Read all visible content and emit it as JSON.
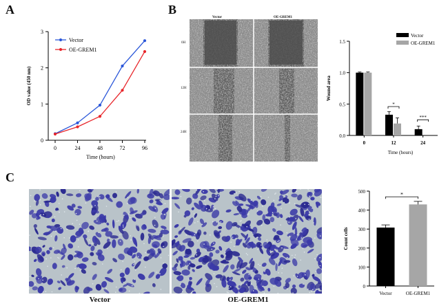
{
  "panels": {
    "a": "A",
    "b": "B",
    "c": "C"
  },
  "colors": {
    "vector_line": "#2b57d9",
    "oe_line": "#e8262b",
    "bar_vector": "#000000",
    "bar_oe": "#a6a6a6",
    "stain": "#3b3aa8"
  },
  "panelB_images": {
    "col_labels": [
      "Vector",
      "OE-GREM1"
    ],
    "row_labels": [
      "0H",
      "12H",
      "24H"
    ]
  },
  "panelC_images": {
    "labels": [
      "Vector",
      "OE-GREM1"
    ]
  },
  "chart_data": [
    {
      "id": "A",
      "type": "line",
      "x": [
        0,
        24,
        48,
        72,
        96
      ],
      "series": [
        {
          "name": "Vector",
          "values": [
            0.18,
            0.48,
            0.97,
            2.05,
            2.75
          ]
        },
        {
          "name": "OE-GREM1",
          "values": [
            0.17,
            0.37,
            0.66,
            1.38,
            2.45
          ]
        }
      ],
      "xlabel": "Time (hours)",
      "ylabel": "OD value (450 nm)",
      "xticks": [
        "0",
        "24",
        "48",
        "72",
        "96"
      ],
      "yticks": [
        "0",
        "1",
        "2",
        "3"
      ],
      "ylim": [
        0,
        3
      ],
      "legend": "top-left",
      "grid": false
    },
    {
      "id": "B",
      "type": "bar",
      "categories": [
        "0",
        "12",
        "24"
      ],
      "series": [
        {
          "name": "Vector",
          "values": [
            1.0,
            0.33,
            0.1
          ],
          "errors": [
            0.01,
            0.05,
            0.05
          ]
        },
        {
          "name": "OE-GREM1",
          "values": [
            1.0,
            0.19,
            0.0
          ],
          "errors": [
            0.01,
            0.09,
            0.0
          ]
        }
      ],
      "xlabel": "Time (hours)",
      "ylabel": "Wound area",
      "yticks": [
        "0.0",
        "0.5",
        "1.0",
        "1.5"
      ],
      "ylim": [
        0,
        1.5
      ],
      "significance": [
        "*",
        "***"
      ],
      "legend": "top-right",
      "grid": false
    },
    {
      "id": "C",
      "type": "bar",
      "categories": [
        "Vector",
        "OE-GREM1"
      ],
      "series": [
        {
          "name": "",
          "values": [
            308,
            430
          ],
          "errors": [
            14,
            16
          ]
        }
      ],
      "ylabel": "Count cells",
      "yticks": [
        "0",
        "100",
        "200",
        "300",
        "400",
        "500"
      ],
      "ylim": [
        0,
        500
      ],
      "significance": [
        "*"
      ],
      "grid": false
    }
  ]
}
